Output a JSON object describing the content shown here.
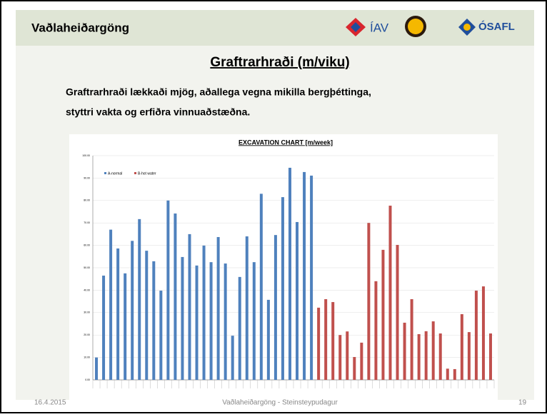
{
  "slide": {
    "header": "Vaðlaheiðargöng",
    "logos": [
      "ÍAV",
      "ÓSAFL"
    ],
    "title": "Graftrarhraði (m/viku)",
    "body": [
      "Graftrarhraði lækkaði mjög, aðallega vegna mikilla bergþéttinga,",
      "styttri vakta og erfiðra vinnuaðstæðna."
    ],
    "footer_date": "16.4.2015",
    "footer_text": "Vaðlaheiðargöng - Steinsteypudagur",
    "page": "19"
  },
  "chart_data": {
    "type": "bar",
    "title": "EXCAVATION CHART [m/week]",
    "categories": [
      null,
      null,
      null,
      null,
      null,
      null,
      null,
      null,
      null,
      null,
      null,
      null,
      null,
      null,
      null,
      null,
      null,
      null,
      null,
      null,
      null,
      null,
      null,
      null,
      null,
      null,
      null,
      null,
      null,
      null,
      null,
      null,
      null,
      null,
      null,
      null,
      null,
      null,
      null,
      null,
      null,
      null,
      null,
      null,
      null,
      null,
      null,
      null,
      null,
      null,
      null,
      null,
      null,
      null,
      null,
      null
    ],
    "series": [
      {
        "name": "A-normal",
        "color": "#4f81bd",
        "values": [
          10,
          46.5,
          67,
          58.6,
          47.5,
          62,
          71.7,
          57.6,
          52.9,
          39.8,
          80,
          74.2,
          54.8,
          65,
          51,
          59.9,
          52.5,
          63.7,
          51.9,
          19.7,
          45.9,
          64,
          52.5,
          83,
          35.7,
          64.6,
          81.5,
          94.6,
          70.4,
          92.7,
          91.1,
          null,
          null,
          null,
          null,
          null,
          null,
          null,
          null,
          null,
          null,
          null,
          null,
          null,
          null,
          null,
          null,
          null,
          null,
          null,
          null,
          null,
          null,
          null,
          null,
          null
        ]
      },
      {
        "name": "B-hot water",
        "color": "#c0504d",
        "values": [
          null,
          null,
          null,
          null,
          null,
          null,
          null,
          null,
          null,
          null,
          null,
          null,
          null,
          null,
          null,
          null,
          null,
          null,
          null,
          null,
          null,
          null,
          null,
          null,
          null,
          null,
          null,
          null,
          null,
          null,
          null,
          32.2,
          36,
          34.7,
          20,
          21.6,
          10.2,
          16.6,
          70,
          44,
          58,
          77.7,
          60.2,
          25.5,
          36,
          20.4,
          21.7,
          26.1,
          20.7,
          5,
          4.8,
          29.3,
          21.3,
          39.8,
          41.7,
          20.7
        ]
      }
    ],
    "ylim": [
      0,
      100
    ],
    "yticks": [
      {
        "value": 0,
        "label": "0.00"
      },
      {
        "value": 10,
        "label": "10.00"
      },
      {
        "value": 20,
        "label": "20.00"
      },
      {
        "value": 30,
        "label": "30.00"
      },
      {
        "value": 40,
        "label": "40.00"
      },
      {
        "value": 50,
        "label": "50.00"
      },
      {
        "value": 60,
        "label": "60.00"
      },
      {
        "value": 70,
        "label": "70.00"
      },
      {
        "value": 80,
        "label": "80.00"
      },
      {
        "value": 90,
        "label": "90.00"
      },
      {
        "value": 100,
        "label": "100.00"
      }
    ],
    "grid": true,
    "legend": "top-left"
  }
}
